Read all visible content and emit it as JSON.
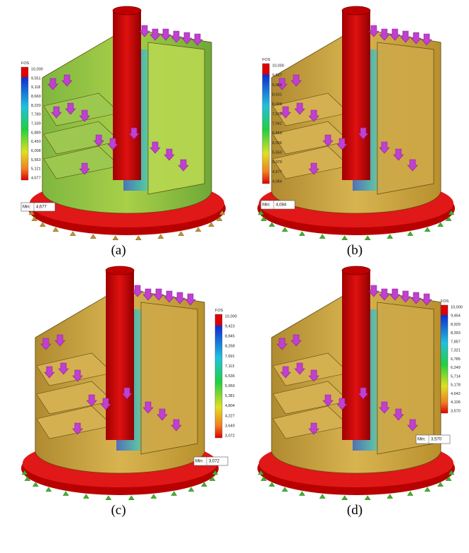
{
  "panels": [
    {
      "caption": "(a)",
      "legend": {
        "title": "FOS",
        "ticks": [
          "10,000",
          "9,551",
          "9,118",
          "8,669",
          "8,220",
          "7,780",
          "7,339",
          "6,889",
          "6,450",
          "6,008",
          "5,563",
          "5,121",
          "4,677"
        ]
      },
      "min_prefix": "Min:",
      "min_value": "4,677"
    },
    {
      "caption": "(b)",
      "legend": {
        "title": "FOS",
        "ticks": [
          "10,000",
          "9,527",
          "9,054",
          "8,531",
          "8,008",
          "7,535",
          "7,042",
          "6,569",
          "6,096",
          "5,550",
          "5,070",
          "4,577",
          "4,084"
        ]
      },
      "min_prefix": "Min:",
      "min_value": "4,084"
    },
    {
      "caption": "(c)",
      "legend": {
        "title": "FOS",
        "ticks": [
          "10,000",
          "9,423",
          "8,845",
          "8,268",
          "7,691",
          "7,113",
          "6,536",
          "5,959",
          "5,381",
          "4,804",
          "4,227",
          "3,649",
          "3,072"
        ]
      },
      "min_prefix": "Min:",
      "min_value": "3,072"
    },
    {
      "caption": "(d)",
      "legend": {
        "title": "FOS",
        "ticks": [
          "10,000",
          "9,464",
          "8,929",
          "8,393",
          "7,857",
          "7,321",
          "6,785",
          "6,249",
          "5,714",
          "5,178",
          "4,642",
          "4,106",
          "3,570"
        ]
      },
      "min_prefix": "Min:",
      "min_value": "3,570"
    }
  ]
}
